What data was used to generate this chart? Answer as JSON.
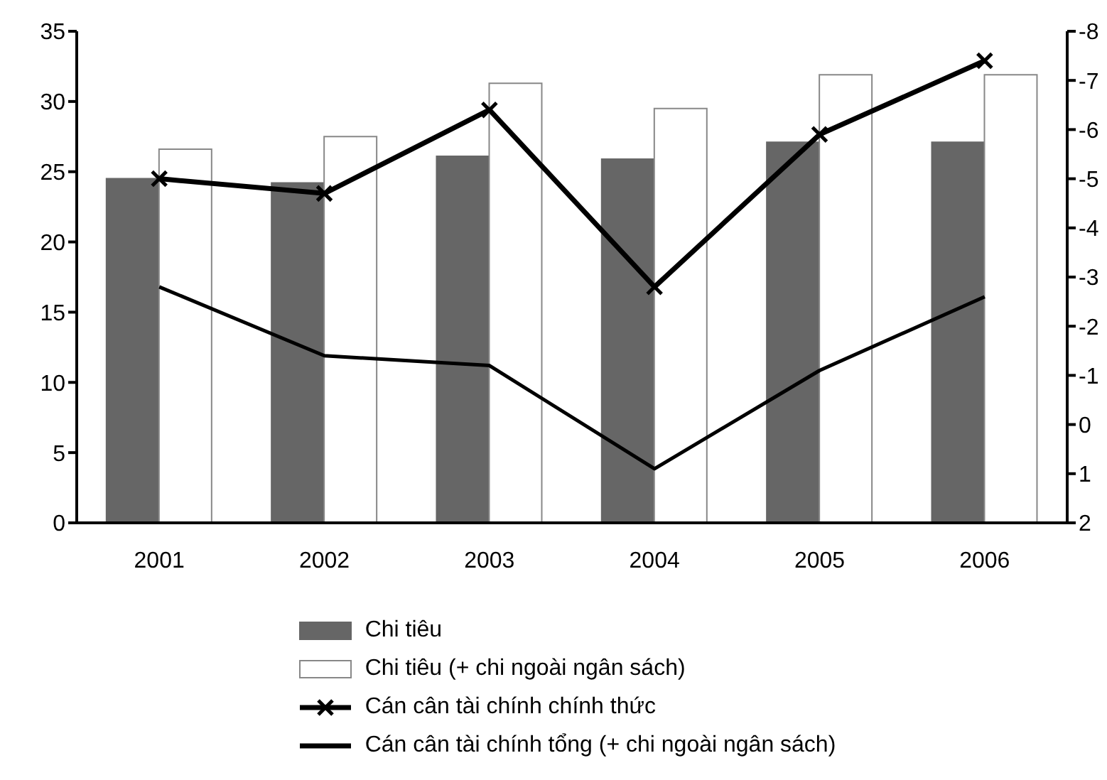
{
  "chart_data": {
    "type": "bar",
    "categories": [
      "2001",
      "2002",
      "2003",
      "2004",
      "2005",
      "2006"
    ],
    "series": [
      {
        "name": "Chi tiêu",
        "color": "#666666",
        "values": [
          24.5,
          24.2,
          26.1,
          25.9,
          27.1,
          27.1
        ]
      },
      {
        "name": "Chi tiêu (+ chi ngoài ngân sách)",
        "color": "#ffffff",
        "values": [
          26.6,
          27.5,
          31.3,
          29.5,
          31.9,
          31.9
        ]
      },
      {
        "name": "Cán cân tài chính chính thức",
        "type": "line",
        "axis": "y2",
        "marker": "cross",
        "color": "#000000",
        "values": [
          -5.0,
          -4.7,
          -6.4,
          -2.8,
          -5.9,
          -7.4
        ]
      },
      {
        "name": "Cán cân tài chính tổng (+ chi ngoài ngân sách)",
        "type": "line",
        "axis": "y2",
        "color": "#000000",
        "values": [
          -2.8,
          -1.4,
          -1.2,
          0.9,
          -1.1,
          -2.6
        ]
      }
    ],
    "ylim": [
      0,
      35
    ],
    "yticks": [
      0,
      5,
      10,
      15,
      20,
      25,
      30,
      35
    ],
    "y2lim": [
      2,
      -8
    ],
    "y2ticks": [
      2,
      1,
      0,
      -1,
      -2,
      -3,
      -4,
      -5,
      -6,
      -7,
      -8
    ],
    "legend": "bottom",
    "grid": false
  }
}
